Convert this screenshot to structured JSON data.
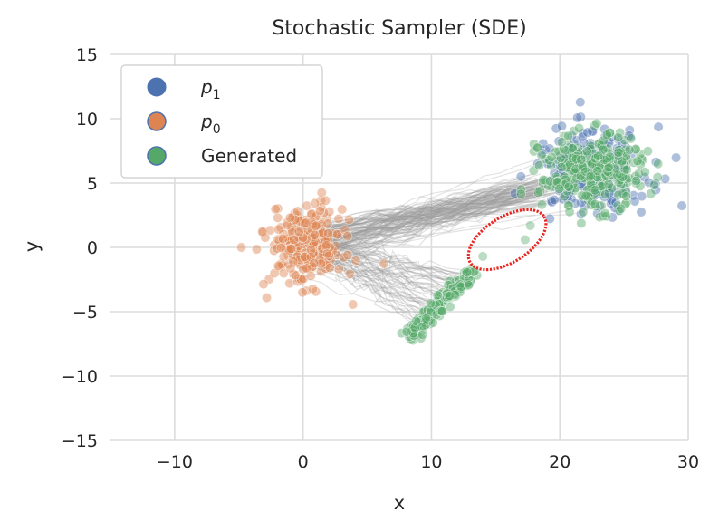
{
  "chart_data": {
    "type": "scatter",
    "title": "Stochastic Sampler (SDE)",
    "xlabel": "x",
    "ylabel": "y",
    "xlim": [
      -15,
      30
    ],
    "ylim": [
      -15,
      15
    ],
    "xticks": [
      -10,
      0,
      10,
      20,
      30
    ],
    "yticks": [
      -15,
      -10,
      -5,
      0,
      5,
      10,
      15
    ],
    "xtick_labels": [
      "−10",
      "0",
      "10",
      "20",
      "30"
    ],
    "ytick_labels": [
      "−15",
      "−10",
      "−5",
      "0",
      "5",
      "10",
      "15"
    ],
    "grid": true,
    "legend_position": "top-left",
    "series": [
      {
        "name": "p1",
        "color": "#4c72b0",
        "center": [
          22.5,
          6.0
        ],
        "spread": [
          2.2,
          1.6
        ]
      },
      {
        "name": "p0",
        "color": "#dd8452",
        "center": [
          0.3,
          0.1
        ],
        "spread": [
          1.4,
          1.5
        ]
      },
      {
        "name": "Generated",
        "color": "#55a868",
        "clusters": [
          {
            "center": [
              22.5,
              5.8
            ],
            "spread": [
              2.0,
              1.4
            ]
          },
          {
            "from": [
              8.3,
              -7.0
            ],
            "to": [
              13.3,
              -1.7
            ],
            "width": 0.5
          }
        ],
        "outliers": [
          [
            14.0,
            -0.7
          ],
          [
            17.3,
            0.6
          ],
          [
            17.7,
            1.7
          ]
        ]
      }
    ],
    "trajectories": {
      "color": "#9a9a9a",
      "origin": [
        0.3,
        0.1
      ]
    },
    "annotation": {
      "shape": "ellipse",
      "color": "#e8251f",
      "center": [
        15.9,
        0.6
      ],
      "note": "red dotted ellipse highlighting points between the clusters"
    }
  },
  "legend": {
    "items": [
      {
        "label_main": "p",
        "label_sub": "1",
        "color": "#4c72b0"
      },
      {
        "label_main": "p",
        "label_sub": "0",
        "color": "#dd8452"
      },
      {
        "label": "Generated",
        "color": "#55a868"
      }
    ]
  }
}
